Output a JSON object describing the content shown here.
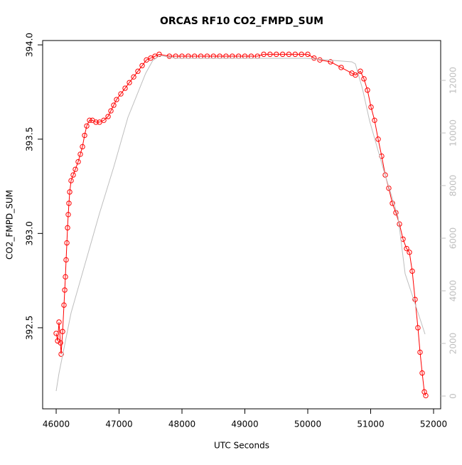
{
  "chart_data": {
    "type": "line",
    "title": "ORCAS RF10 CO2_FMPD_SUM",
    "xlabel": "UTC Seconds",
    "ylabel": "CO2_FMPD_SUM",
    "xlim": [
      45785,
      52113
    ],
    "ylim": [
      392.07,
      394.023
    ],
    "y2lim": [
      -486,
      13514
    ],
    "xticks": [
      46000,
      47000,
      48000,
      49000,
      50000,
      51000,
      52000
    ],
    "yticks": [
      392.5,
      {
        "value": 393,
        "label": "393.0"
      },
      393.5,
      {
        "value": 394,
        "label": "394.0"
      }
    ],
    "y2ticks": [
      0,
      2000,
      4000,
      6000,
      8000,
      10000,
      12000
    ],
    "y2color": "#bebebe",
    "series": [
      {
        "color": "#ff0000",
        "marker": "circle",
        "x": [
          46000,
          46023,
          46045,
          46068,
          46079,
          46102,
          46124,
          46136,
          46147,
          46158,
          46170,
          46181,
          46192,
          46203,
          46215,
          46237,
          46271,
          46305,
          46350,
          46384,
          46418,
          46452,
          46486,
          46531,
          46576,
          46633,
          46689,
          46757,
          46825,
          46870,
          46915,
          46960,
          47028,
          47096,
          47164,
          47232,
          47299,
          47367,
          47435,
          47503,
          47571,
          47638,
          47800,
          47900,
          48000,
          48100,
          48200,
          48300,
          48400,
          48500,
          48600,
          48700,
          48800,
          48900,
          49000,
          49100,
          49200,
          49300,
          49400,
          49500,
          49600,
          49700,
          49800,
          49900,
          50000,
          50100,
          50192,
          50362,
          50531,
          50701,
          50757,
          50836,
          50893,
          50949,
          51006,
          51062,
          51119,
          51175,
          51232,
          51288,
          51345,
          51401,
          51458,
          51514,
          51571,
          51616,
          51661,
          51706,
          51751,
          51785,
          51819,
          51853,
          51876
        ],
        "values": [
          392.47,
          392.43,
          392.53,
          392.42,
          392.36,
          392.48,
          392.62,
          392.7,
          392.77,
          392.86,
          392.95,
          393.03,
          393.1,
          393.16,
          393.22,
          393.28,
          393.31,
          393.34,
          393.38,
          393.42,
          393.46,
          393.52,
          393.57,
          393.6,
          393.6,
          393.59,
          393.59,
          393.6,
          393.62,
          393.65,
          393.68,
          393.71,
          393.74,
          393.77,
          393.8,
          393.83,
          393.86,
          393.89,
          393.92,
          393.93,
          393.94,
          393.95,
          393.94,
          393.94,
          393.94,
          393.94,
          393.94,
          393.94,
          393.94,
          393.94,
          393.94,
          393.94,
          393.94,
          393.94,
          393.94,
          393.94,
          393.94,
          393.95,
          393.95,
          393.95,
          393.95,
          393.95,
          393.95,
          393.95,
          393.95,
          393.93,
          393.92,
          393.91,
          393.88,
          393.85,
          393.84,
          393.86,
          393.82,
          393.76,
          393.67,
          393.6,
          393.5,
          393.41,
          393.31,
          393.24,
          393.16,
          393.11,
          393.05,
          392.97,
          392.92,
          392.9,
          392.8,
          392.65,
          392.5,
          392.37,
          392.26,
          392.16,
          392.14
        ]
      },
      {
        "color": "#bebebe",
        "axis": "y2",
        "x": [
          46000,
          46045,
          46124,
          46237,
          46463,
          46689,
          46915,
          47141,
          47424,
          47537,
          47650,
          47900,
          48500,
          49000,
          49500,
          49967,
          50701,
          50757,
          50870,
          50983,
          51209,
          51435,
          51548,
          51661,
          51864
        ],
        "values": [
          189,
          865,
          1811,
          3162,
          5054,
          6946,
          8703,
          10595,
          12270,
          12757,
          12946,
          12838,
          12838,
          12838,
          12838,
          12838,
          12703,
          12622,
          11676,
          10459,
          8568,
          6811,
          4649,
          3838,
          2351
        ]
      }
    ]
  }
}
